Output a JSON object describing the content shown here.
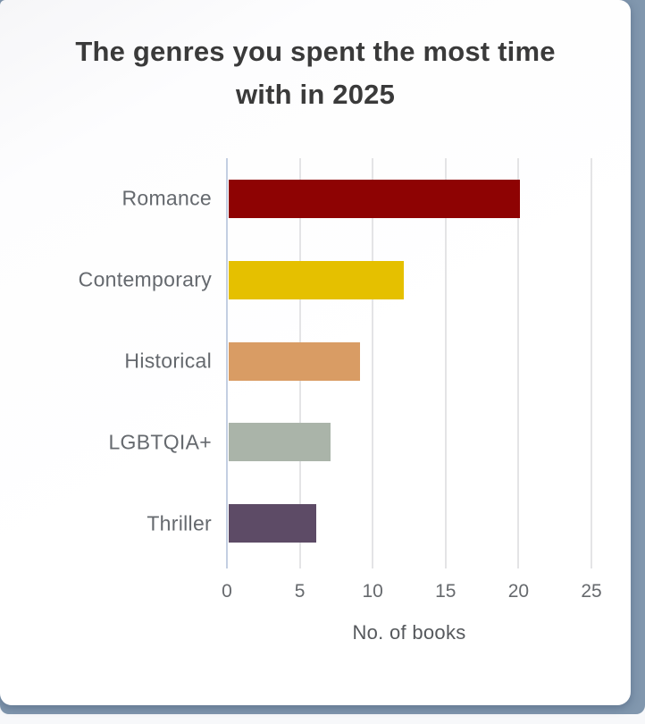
{
  "page": {
    "background_color": "#f7f8fa",
    "panel_color": "#8197ae",
    "card_color": "#ffffff"
  },
  "chart_data": {
    "type": "bar",
    "orientation": "horizontal",
    "title": "The genres you spent the most time with in 2025",
    "categories": [
      "Romance",
      "Contemporary",
      "Historical",
      "LGBTQIA+",
      "Thriller"
    ],
    "values": [
      20,
      12,
      9,
      7,
      6
    ],
    "bar_colors": [
      "#8e0303",
      "#e5c000",
      "#d99c64",
      "#aab4a9",
      "#5d4b66"
    ],
    "xlabel": "No. of books",
    "xlim": [
      0,
      25
    ],
    "xticks": [
      0,
      5,
      10,
      15,
      20,
      25
    ],
    "grid": true,
    "grid_color": "#e4e4e6",
    "zero_line_color": "#c4cfe2",
    "legend": "none",
    "title_color": "#3a3a3a",
    "label_color": "#65696e",
    "tick_color": "#66696d"
  }
}
